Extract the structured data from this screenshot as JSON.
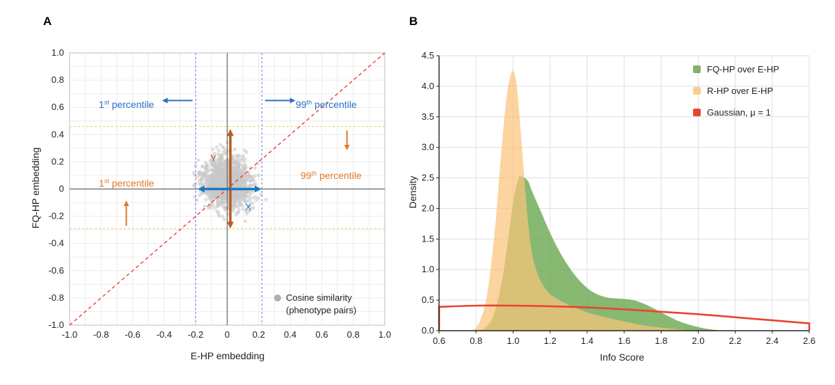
{
  "chart_data": [
    {
      "panel": "A",
      "type": "scatter",
      "xlabel": "E-HP embedding",
      "ylabel": "FQ-HP embedding",
      "xlim": [
        -1.0,
        1.0
      ],
      "ylim": [
        -1.0,
        1.0
      ],
      "ticks": [
        "-1.0",
        "-0.8",
        "-0.6",
        "-0.4",
        "-0.2",
        "0",
        "0.2",
        "0.4",
        "0.6",
        "0.8",
        "1.0"
      ],
      "tick_values": [
        -1.0,
        -0.8,
        -0.6,
        -0.4,
        -0.2,
        0,
        0.2,
        0.4,
        0.6,
        0.8,
        1.0
      ],
      "grid": true,
      "point_cloud": {
        "x_range": [
          -0.3,
          0.3
        ],
        "y_range": [
          -0.3,
          0.4
        ],
        "color": "#c8c8c8"
      },
      "x_percentile_1": -0.2,
      "x_percentile_99": 0.22,
      "y_percentile_1": -0.29,
      "y_percentile_99": 0.46,
      "diagonal": {
        "from": [
          -1.0,
          -1.0
        ],
        "to": [
          1.0,
          1.0
        ],
        "color": "#e8312a"
      },
      "annotations": {
        "x_low": {
          "base": "1",
          "sup": "st",
          "rest": " percentile",
          "color": "#2f6fc6"
        },
        "x_high": {
          "base": "99",
          "sup": "th",
          "rest": " percentile",
          "color": "#2f6fc6"
        },
        "y_low": {
          "base": "1",
          "sup": "st",
          "rest": " percentile",
          "color": "#e07a2a"
        },
        "y_high": {
          "base": "99",
          "sup": "th",
          "rest": " percentile",
          "color": "#e07a2a"
        },
        "y_label": "Y",
        "x_label": "X"
      },
      "legend": {
        "label_line1": "Cosine similarity",
        "label_line2": "(phenotype pairs)",
        "color": "#b0b0b0",
        "position": "bottom-right"
      }
    },
    {
      "panel": "B",
      "type": "area",
      "xlabel": "Info Score",
      "ylabel": "Density",
      "xlim": [
        0.6,
        2.6
      ],
      "ylim": [
        0,
        4.5
      ],
      "x_ticks": [
        "0.6",
        "0.8",
        "1.0",
        "1.2",
        "1.4",
        "1.6",
        "1.8",
        "2.0",
        "2.2",
        "2.4",
        "2.6"
      ],
      "x_tick_values": [
        0.6,
        0.8,
        1.0,
        1.2,
        1.4,
        1.6,
        1.8,
        2.0,
        2.2,
        2.4,
        2.6
      ],
      "y_ticks": [
        "0.0",
        "0.5",
        "1.0",
        "1.5",
        "2.0",
        "2.5",
        "3.0",
        "3.5",
        "4.0",
        "4.5"
      ],
      "y_tick_values": [
        0,
        0.5,
        1.0,
        1.5,
        2.0,
        2.5,
        3.0,
        3.5,
        4.0,
        4.5
      ],
      "grid": true,
      "series": [
        {
          "name": "FQ-HP over E-HP",
          "color": "#6aa84f",
          "x": [
            0.8,
            0.85,
            0.9,
            0.95,
            1.0,
            1.03,
            1.05,
            1.08,
            1.1,
            1.15,
            1.2,
            1.25,
            1.3,
            1.35,
            1.4,
            1.45,
            1.5,
            1.55,
            1.6,
            1.65,
            1.7,
            1.75,
            1.8,
            1.85,
            1.9,
            1.95,
            2.0,
            2.05,
            2.1,
            2.15
          ],
          "values": [
            0.0,
            0.05,
            0.3,
            1.0,
            2.1,
            2.5,
            2.52,
            2.45,
            2.3,
            1.95,
            1.6,
            1.3,
            1.05,
            0.85,
            0.7,
            0.6,
            0.55,
            0.53,
            0.52,
            0.5,
            0.45,
            0.38,
            0.3,
            0.22,
            0.15,
            0.1,
            0.06,
            0.03,
            0.01,
            0.0
          ]
        },
        {
          "name": "R-HP over E-HP",
          "color": "#f9c47a",
          "x": [
            0.78,
            0.82,
            0.86,
            0.9,
            0.93,
            0.96,
            0.98,
            1.0,
            1.02,
            1.04,
            1.06,
            1.08,
            1.1,
            1.13,
            1.16,
            1.2,
            1.25,
            1.3,
            1.35,
            1.4,
            1.5,
            1.6,
            1.7,
            1.8,
            1.9,
            2.0
          ],
          "values": [
            0.0,
            0.15,
            0.6,
            1.6,
            2.7,
            3.7,
            4.1,
            4.25,
            4.0,
            3.3,
            2.5,
            1.8,
            1.3,
            0.95,
            0.75,
            0.6,
            0.5,
            0.42,
            0.36,
            0.3,
            0.22,
            0.15,
            0.09,
            0.05,
            0.02,
            0.0
          ]
        },
        {
          "name": "Gaussian, μ = 1",
          "type": "line",
          "color": "#e8442f",
          "mu": 1,
          "x": [
            0.6,
            0.8,
            1.0,
            1.2,
            1.4,
            1.6,
            1.8,
            2.0,
            2.2,
            2.4,
            2.6
          ],
          "values": [
            0.39,
            0.41,
            0.41,
            0.4,
            0.38,
            0.35,
            0.31,
            0.27,
            0.22,
            0.17,
            0.12
          ]
        }
      ],
      "legend_position": "top-right"
    }
  ]
}
